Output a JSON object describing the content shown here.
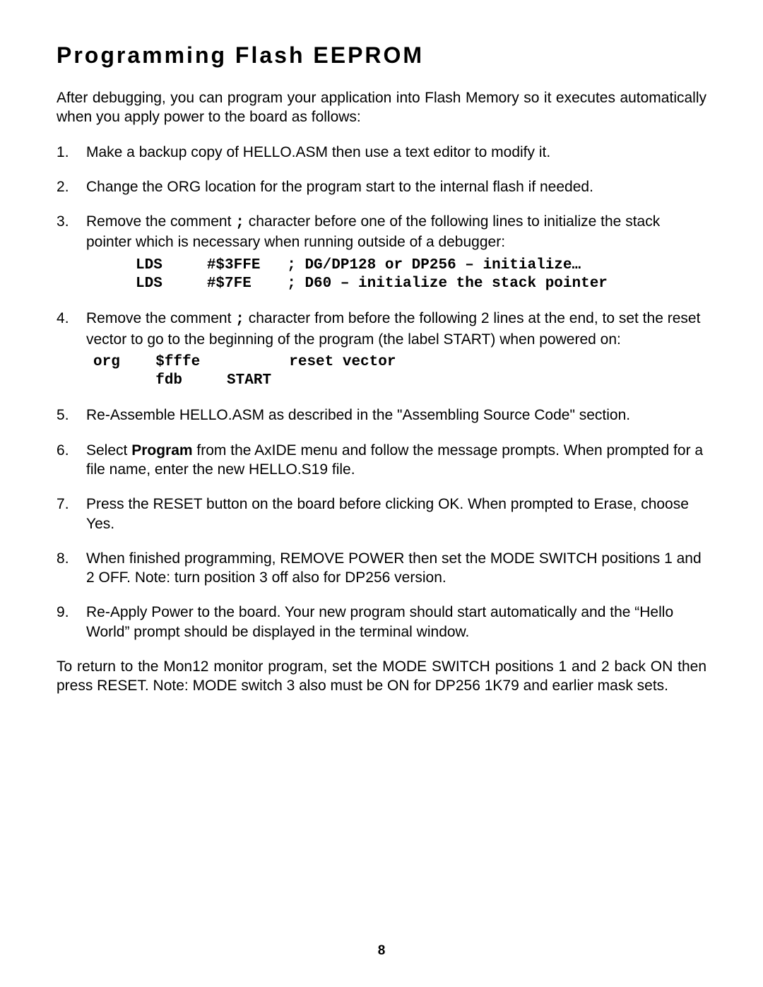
{
  "title": "Programming Flash EEPROM",
  "intro": "After debugging, you can program your application into Flash Memory so it executes automatically when you apply power to the board as follows:",
  "steps": {
    "s1": "Make a backup copy of HELLO.ASM then use a text editor to modify it.",
    "s2": "Change the ORG location for the program start to the internal flash if needed.",
    "s3_a": "Remove the comment ",
    "s3_semi": ";",
    "s3_b": " character before one of the following lines to initialize the stack pointer which is necessary when running outside of a debugger:",
    "code1": "LDS     #$3FFE   ; DG/DP128 or DP256 – initialize…\nLDS     #$7FE    ; D60 – initialize the stack pointer",
    "s4_a": "Remove the comment ",
    "s4_semi": ";",
    "s4_b": " character from before the following 2 lines at the end, to set the reset vector to go to the beginning of the program (the label START) when powered on:",
    "code2": "org    $fffe          reset vector\n       fdb     START",
    "s5": "Re-Assemble HELLO.ASM as described in the \"Assembling Source Code\" section.",
    "s6_a": "Select ",
    "s6_bold": "Program",
    "s6_b": " from the AxIDE menu and follow the message prompts.   When prompted for a file name, enter the new HELLO.S19 file.",
    "s7": "Press the RESET button on the board before clicking OK.  When prompted to Erase, choose Yes.",
    "s8": "When finished programming, REMOVE POWER then set the MODE SWITCH positions 1 and 2 OFF.  Note: turn position 3 off also for DP256 version.",
    "s9": "Re-Apply Power to the board.  Your new program should start automatically and the “Hello World” prompt should be displayed in the terminal window."
  },
  "closing": "To return to the Mon12 monitor program, set the MODE SWITCH positions 1 and 2 back ON then press RESET.  Note: MODE switch 3 also must be ON for DP256 1K79  and earlier mask sets.",
  "page_number": "8"
}
